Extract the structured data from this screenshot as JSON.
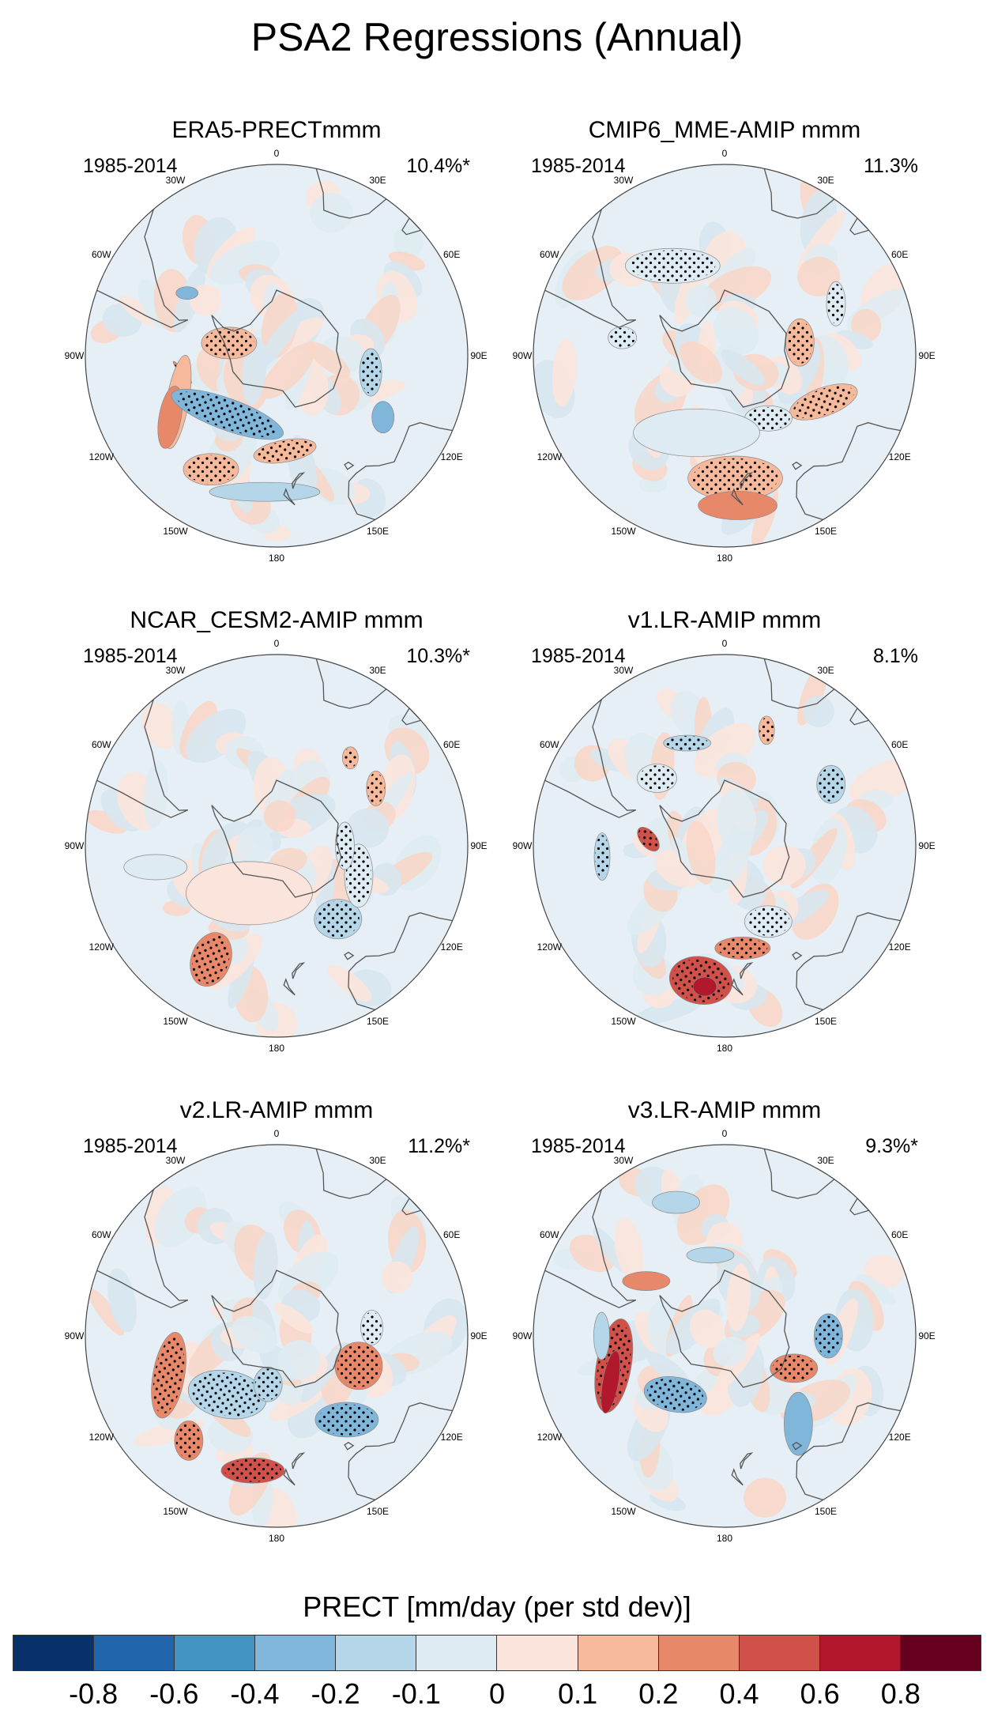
{
  "figure_title": "PSA2 Regressions (Annual)",
  "longitude_labels": [
    "0",
    "30E",
    "60E",
    "90E",
    "120E",
    "150E",
    "180",
    "150W",
    "120W",
    "90W",
    "60W",
    "30W"
  ],
  "panels": [
    {
      "title": "ERA5-PRECTmmm",
      "period": "1985-2014",
      "variance": "10.4%*"
    },
    {
      "title": "CMIP6_MME-AMIP  mmm",
      "period": "1985-2014",
      "variance": "11.3%"
    },
    {
      "title": "NCAR_CESM2-AMIP  mmm",
      "period": "1985-2014",
      "variance": "10.3%*"
    },
    {
      "title": "v1.LR-AMIP  mmm",
      "period": "1985-2014",
      "variance": "8.1%"
    },
    {
      "title": "v2.LR-AMIP  mmm",
      "period": "1985-2014",
      "variance": "11.2%*"
    },
    {
      "title": "v3.LR-AMIP  mmm",
      "period": "1985-2014",
      "variance": "9.3%*"
    }
  ],
  "colorbar": {
    "title": "PRECT [mm/day (per std dev)]",
    "tick_labels": [
      "-0.8",
      "-0.6",
      "-0.4",
      "-0.2",
      "-0.1",
      "0",
      "0.1",
      "0.2",
      "0.4",
      "0.6",
      "0.8"
    ],
    "colors": [
      "#08306b",
      "#2166ac",
      "#4393c3",
      "#7fb6da",
      "#b4d6e8",
      "#deebf2",
      "#fbe4dc",
      "#f6b99c",
      "#e8886a",
      "#d0504a",
      "#b2182b",
      "#67001f"
    ]
  },
  "regions": {
    "panel_0": [
      {
        "lat": -55,
        "lon": -100,
        "rx": 3,
        "ry": 18,
        "rot": -40,
        "level": 3,
        "stipple": true
      },
      {
        "lat": -50,
        "lon": -115,
        "rx": 14,
        "ry": 60,
        "rot": 10,
        "level": 2,
        "stipple": false
      },
      {
        "lat": -45,
        "lon": -120,
        "rx": 14,
        "ry": 40,
        "rot": 10,
        "level": 3,
        "stipple": false
      },
      {
        "lat": -62,
        "lon": -140,
        "rx": 75,
        "ry": 20,
        "rot": 20,
        "level": -3,
        "stipple": true
      },
      {
        "lat": -42,
        "lon": -150,
        "rx": 35,
        "ry": 20,
        "rot": 0,
        "level": 2,
        "stipple": true
      },
      {
        "lat": -55,
        "lon": 175,
        "rx": 40,
        "ry": 14,
        "rot": -10,
        "level": 2,
        "stipple": true
      },
      {
        "lat": -55,
        "lon": 100,
        "rx": 14,
        "ry": 30,
        "rot": 0,
        "level": -2,
        "stipple": true
      },
      {
        "lat": -45,
        "lon": 120,
        "rx": 14,
        "ry": 20,
        "rot": 0,
        "level": -3,
        "stipple": false
      },
      {
        "lat": -40,
        "lon": -175,
        "rx": 70,
        "ry": 12,
        "rot": 0,
        "level": -2,
        "stipple": false
      },
      {
        "lat": -72,
        "lon": -75,
        "rx": 35,
        "ry": 20,
        "rot": 0,
        "level": 2,
        "stipple": true
      },
      {
        "lat": -50,
        "lon": -55,
        "rx": 14,
        "ry": 8,
        "rot": 0,
        "level": -3,
        "stipple": false
      }
    ],
    "panel_1": [
      {
        "lat": -52,
        "lon": -30,
        "rx": 60,
        "ry": 22,
        "rot": 0,
        "level": -1,
        "stipple": true
      },
      {
        "lat": -52,
        "lon": -80,
        "rx": 18,
        "ry": 14,
        "rot": 0,
        "level": -1,
        "stipple": true
      },
      {
        "lat": -45,
        "lon": 65,
        "rx": 12,
        "ry": 28,
        "rot": 0,
        "level": -1,
        "stipple": true
      },
      {
        "lat": -62,
        "lon": 80,
        "rx": 18,
        "ry": 30,
        "rot": 0,
        "level": 2,
        "stipple": true
      },
      {
        "lat": -50,
        "lon": 115,
        "rx": 45,
        "ry": 18,
        "rot": -20,
        "level": 2,
        "stipple": true
      },
      {
        "lat": -62,
        "lon": 145,
        "rx": 30,
        "ry": 16,
        "rot": 0,
        "level": -1,
        "stipple": true
      },
      {
        "lat": -45,
        "lon": 175,
        "rx": 60,
        "ry": 28,
        "rot": 0,
        "level": 2,
        "stipple": true
      },
      {
        "lat": -35,
        "lon": 175,
        "rx": 50,
        "ry": 18,
        "rot": 0,
        "level": 3,
        "stipple": false
      },
      {
        "lat": -60,
        "lon": -160,
        "rx": 80,
        "ry": 30,
        "rot": 0,
        "level": -1,
        "stipple": false
      }
    ],
    "panel_2": [
      {
        "lat": -42,
        "lon": -150,
        "rx": 25,
        "ry": 35,
        "rot": 20,
        "level": 3,
        "stipple": true
      },
      {
        "lat": -55,
        "lon": 140,
        "rx": 30,
        "ry": 25,
        "rot": 0,
        "level": -2,
        "stipple": true
      },
      {
        "lat": -58,
        "lon": 110,
        "rx": 18,
        "ry": 40,
        "rot": 0,
        "level": -1,
        "stipple": true
      },
      {
        "lat": -65,
        "lon": 90,
        "rx": 12,
        "ry": 30,
        "rot": 0,
        "level": -1,
        "stipple": true
      },
      {
        "lat": -48,
        "lon": 60,
        "rx": 12,
        "ry": 22,
        "rot": 0,
        "level": 2,
        "stipple": true
      },
      {
        "lat": -48,
        "lon": 40,
        "rx": 10,
        "ry": 14,
        "rot": 0,
        "level": 2,
        "stipple": true
      },
      {
        "lat": -70,
        "lon": -150,
        "rx": 80,
        "ry": 40,
        "rot": 0,
        "level": 1,
        "stipple": false
      },
      {
        "lat": -45,
        "lon": -100,
        "rx": 40,
        "ry": 16,
        "rot": 0,
        "level": -1,
        "stipple": false
      }
    ],
    "panel_3": [
      {
        "lat": -40,
        "lon": -170,
        "rx": 40,
        "ry": 30,
        "rot": 10,
        "level": 4,
        "stipple": true
      },
      {
        "lat": -38,
        "lon": -172,
        "rx": 15,
        "ry": 12,
        "rot": 0,
        "level": 5,
        "stipple": false
      },
      {
        "lat": -52,
        "lon": 170,
        "rx": 35,
        "ry": 14,
        "rot": 0,
        "level": 3,
        "stipple": true
      },
      {
        "lat": -58,
        "lon": 150,
        "rx": 30,
        "ry": 20,
        "rot": 0,
        "level": -1,
        "stipple": true
      },
      {
        "lat": -62,
        "lon": -85,
        "rx": 10,
        "ry": 18,
        "rot": -40,
        "level": 4,
        "stipple": true
      },
      {
        "lat": -55,
        "lon": -45,
        "rx": 25,
        "ry": 18,
        "rot": 0,
        "level": -1,
        "stipple": true
      },
      {
        "lat": -50,
        "lon": -20,
        "rx": 30,
        "ry": 10,
        "rot": 0,
        "level": -2,
        "stipple": true
      },
      {
        "lat": -45,
        "lon": 60,
        "rx": 18,
        "ry": 24,
        "rot": 0,
        "level": -2,
        "stipple": true
      },
      {
        "lat": -45,
        "lon": 20,
        "rx": 10,
        "ry": 18,
        "rot": 0,
        "level": 2,
        "stipple": true
      },
      {
        "lat": -45,
        "lon": -95,
        "rx": 10,
        "ry": 30,
        "rot": 0,
        "level": -2,
        "stipple": true
      }
    ],
    "panel_4": [
      {
        "lat": -48,
        "lon": -110,
        "rx": 20,
        "ry": 55,
        "rot": 10,
        "level": 3,
        "stipple": true
      },
      {
        "lat": -40,
        "lon": -140,
        "rx": 18,
        "ry": 25,
        "rot": 0,
        "level": 3,
        "stipple": true
      },
      {
        "lat": -40,
        "lon": -170,
        "rx": 40,
        "ry": 16,
        "rot": 0,
        "level": 4,
        "stipple": true
      },
      {
        "lat": -62,
        "lon": -140,
        "rx": 50,
        "ry": 30,
        "rot": 10,
        "level": -2,
        "stipple": true
      },
      {
        "lat": -58,
        "lon": 110,
        "rx": 30,
        "ry": 30,
        "rot": 0,
        "level": 3,
        "stipple": true
      },
      {
        "lat": -50,
        "lon": 140,
        "rx": 40,
        "ry": 22,
        "rot": 0,
        "level": -3,
        "stipple": true
      },
      {
        "lat": -55,
        "lon": 85,
        "rx": 14,
        "ry": 22,
        "rot": 0,
        "level": -1,
        "stipple": true
      },
      {
        "lat": -72,
        "lon": -170,
        "rx": 18,
        "ry": 22,
        "rot": 0,
        "level": -2,
        "stipple": true
      }
    ],
    "panel_5": [
      {
        "lat": -48,
        "lon": -105,
        "rx": 22,
        "ry": 60,
        "rot": 10,
        "level": 4,
        "stipple": true
      },
      {
        "lat": -45,
        "lon": -112,
        "rx": 10,
        "ry": 40,
        "rot": 10,
        "level": 5,
        "stipple": false
      },
      {
        "lat": -62,
        "lon": -140,
        "rx": 40,
        "ry": 22,
        "rot": 10,
        "level": -3,
        "stipple": true
      },
      {
        "lat": -62,
        "lon": 115,
        "rx": 30,
        "ry": 18,
        "rot": 0,
        "level": 3,
        "stipple": true
      },
      {
        "lat": -52,
        "lon": 90,
        "rx": 18,
        "ry": 28,
        "rot": 0,
        "level": -3,
        "stipple": true
      },
      {
        "lat": -48,
        "lon": 140,
        "rx": 18,
        "ry": 40,
        "rot": 0,
        "level": -3,
        "stipple": false
      },
      {
        "lat": -38,
        "lon": -20,
        "rx": 30,
        "ry": 14,
        "rot": 0,
        "level": -2,
        "stipple": false
      },
      {
        "lat": -55,
        "lon": -55,
        "rx": 30,
        "ry": 12,
        "rot": 0,
        "level": 3,
        "stipple": false
      },
      {
        "lat": -60,
        "lon": -10,
        "rx": 30,
        "ry": 10,
        "rot": 0,
        "level": -2,
        "stipple": false
      },
      {
        "lat": -45,
        "lon": -90,
        "rx": 10,
        "ry": 30,
        "rot": 0,
        "level": -2,
        "stipple": false
      }
    ]
  }
}
